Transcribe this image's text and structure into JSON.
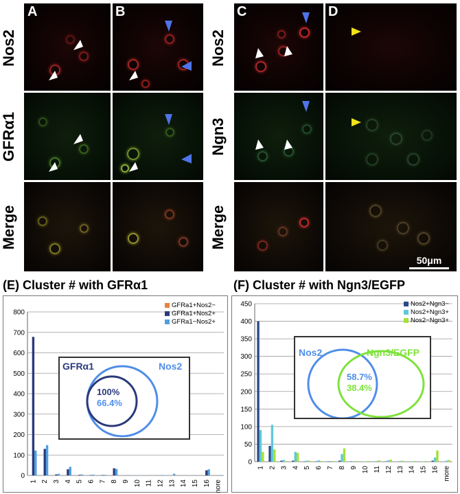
{
  "panels": {
    "letters": [
      "A",
      "B",
      "C",
      "D"
    ],
    "row_labels_left": [
      "Nos2",
      "GFRα1",
      "Merge"
    ],
    "row_labels_right": [
      "Nos2",
      "Ngn3",
      "Merge"
    ],
    "scale_bar": "50μm"
  },
  "charts": {
    "E": {
      "title": "(E) Cluster # with GFRα1",
      "legend": [
        "GFRa1+Nos2−",
        "GFRa1+Nos2+",
        "GFRa1−Nos2+"
      ],
      "inset_left": "GFRα1",
      "inset_right": "Nos2",
      "inset_pct1": "100%",
      "inset_pct2": "66.4%"
    },
    "F": {
      "title": "(F) Cluster # with Ngn3/EGFP",
      "legend": [
        "Nos2+Ngn3−",
        "Nos2+Ngn3+",
        "Nos2−Ngn3+"
      ],
      "inset_left": "Nos2",
      "inset_right": "Ngn3/EGFP",
      "inset_pct1": "58.7%",
      "inset_pct2": "38.4%"
    }
  },
  "colors": {
    "E_series": [
      "#e8823a",
      "#2b3a7a",
      "#4f9fe0"
    ],
    "F_series": [
      "#2b4a8a",
      "#5fc8d8",
      "#a6e03a"
    ],
    "venn_dark": "#2b3a7a",
    "venn_light": "#4f8ee8",
    "venn_green": "#7ee23a"
  },
  "chart_data": [
    {
      "type": "bar",
      "title": "(E) Cluster # with GFRα1",
      "categories": [
        "1",
        "2",
        "3",
        "4",
        "5",
        "6",
        "7",
        "8",
        "9",
        "10",
        "11",
        "12",
        "13",
        "14",
        "15",
        "16",
        "more"
      ],
      "ylim": [
        0,
        800
      ],
      "yticks": [
        0,
        100,
        200,
        300,
        400,
        500,
        600,
        700,
        800
      ],
      "grid": true,
      "legend_position": "top-right",
      "series": [
        {
          "name": "GFRa1+Nos2−",
          "values": [
            2,
            0,
            0,
            0,
            0,
            0,
            0,
            0,
            0,
            0,
            0,
            0,
            0,
            0,
            0,
            0,
            0
          ]
        },
        {
          "name": "GFRa1+Nos2+",
          "values": [
            678,
            130,
            5,
            30,
            3,
            2,
            2,
            35,
            0,
            0,
            0,
            0,
            0,
            0,
            0,
            25,
            0
          ]
        },
        {
          "name": "GFRa1−Nos2+",
          "values": [
            122,
            148,
            8,
            42,
            5,
            4,
            3,
            32,
            2,
            1,
            1,
            2,
            8,
            1,
            1,
            30,
            2
          ]
        }
      ]
    },
    {
      "type": "bar",
      "title": "(F) Cluster # with Ngn3/EGFP",
      "categories": [
        "1",
        "2",
        "3",
        "4",
        "5",
        "6",
        "7",
        "8",
        "9",
        "10",
        "11",
        "12",
        "13",
        "14",
        "15",
        "16",
        "more"
      ],
      "ylim": [
        0,
        450
      ],
      "yticks": [
        0,
        50,
        100,
        150,
        200,
        250,
        300,
        350,
        400,
        450
      ],
      "grid": true,
      "legend_position": "top-right",
      "series": [
        {
          "name": "Nos2+Ngn3−",
          "values": [
            400,
            45,
            3,
            3,
            1,
            1,
            1,
            3,
            1,
            0,
            0,
            1,
            0,
            0,
            0,
            3,
            0
          ]
        },
        {
          "name": "Nos2+Ngn3+",
          "values": [
            90,
            105,
            5,
            28,
            3,
            4,
            2,
            22,
            1,
            1,
            2,
            4,
            2,
            1,
            1,
            12,
            3
          ]
        },
        {
          "name": "Nos2−Ngn3+",
          "values": [
            28,
            35,
            2,
            25,
            3,
            2,
            2,
            38,
            2,
            2,
            4,
            6,
            3,
            2,
            2,
            32,
            5
          ]
        }
      ]
    }
  ]
}
